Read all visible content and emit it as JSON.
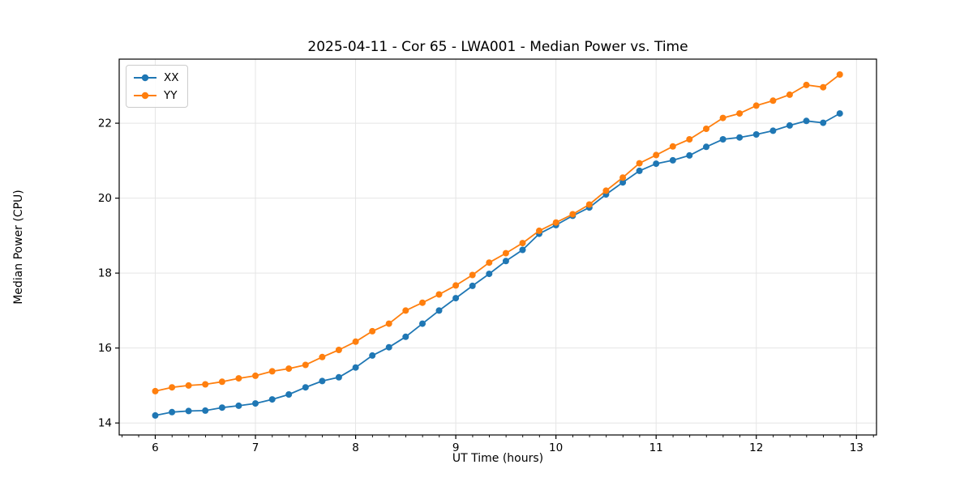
{
  "chart_data": {
    "type": "line",
    "title": "2025-04-11 - Cor 65 - LWA001 - Median Power vs. Time",
    "xlabel": "UT Time (hours)",
    "ylabel": "Median Power (CPU)",
    "xlim": [
      5.64,
      13.2
    ],
    "ylim": [
      13.68,
      23.71
    ],
    "xticks": [
      6,
      7,
      8,
      9,
      10,
      11,
      12,
      13
    ],
    "yticks": [
      14,
      16,
      18,
      20,
      22
    ],
    "x_minor_step": 0.1667,
    "grid": true,
    "grid_color": "#e5e5e5",
    "legend_position": "upper-left",
    "x": [
      6.0,
      6.167,
      6.333,
      6.5,
      6.667,
      6.833,
      7.0,
      7.167,
      7.333,
      7.5,
      7.667,
      7.833,
      8.0,
      8.167,
      8.333,
      8.5,
      8.667,
      8.833,
      9.0,
      9.167,
      9.333,
      9.5,
      9.667,
      9.833,
      10.0,
      10.167,
      10.333,
      10.5,
      10.667,
      10.833,
      11.0,
      11.167,
      11.333,
      11.5,
      11.667,
      11.833,
      12.0,
      12.167,
      12.333,
      12.5,
      12.667,
      12.833
    ],
    "series": [
      {
        "name": "XX",
        "color": "#1f77b4",
        "values": [
          14.2,
          14.29,
          14.32,
          14.33,
          14.41,
          14.46,
          14.52,
          14.63,
          14.76,
          14.95,
          15.12,
          15.22,
          15.48,
          15.8,
          16.02,
          16.3,
          16.65,
          17.0,
          17.33,
          17.66,
          17.98,
          18.32,
          18.62,
          19.05,
          19.28,
          19.53,
          19.75,
          20.1,
          20.42,
          20.73,
          20.92,
          21.01,
          21.14,
          21.37,
          21.57,
          21.62,
          21.7,
          21.8,
          21.94,
          22.06,
          22.01,
          22.26
        ]
      },
      {
        "name": "YY",
        "color": "#ff7f0e",
        "values": [
          14.85,
          14.95,
          15.0,
          15.03,
          15.1,
          15.19,
          15.26,
          15.38,
          15.45,
          15.55,
          15.76,
          15.95,
          16.17,
          16.45,
          16.65,
          17.0,
          17.21,
          17.43,
          17.67,
          17.95,
          18.28,
          18.53,
          18.8,
          19.13,
          19.35,
          19.57,
          19.83,
          20.2,
          20.55,
          20.93,
          21.15,
          21.38,
          21.57,
          21.85,
          22.14,
          22.26,
          22.47,
          22.6,
          22.76,
          23.02,
          22.96,
          23.3
        ]
      }
    ]
  }
}
